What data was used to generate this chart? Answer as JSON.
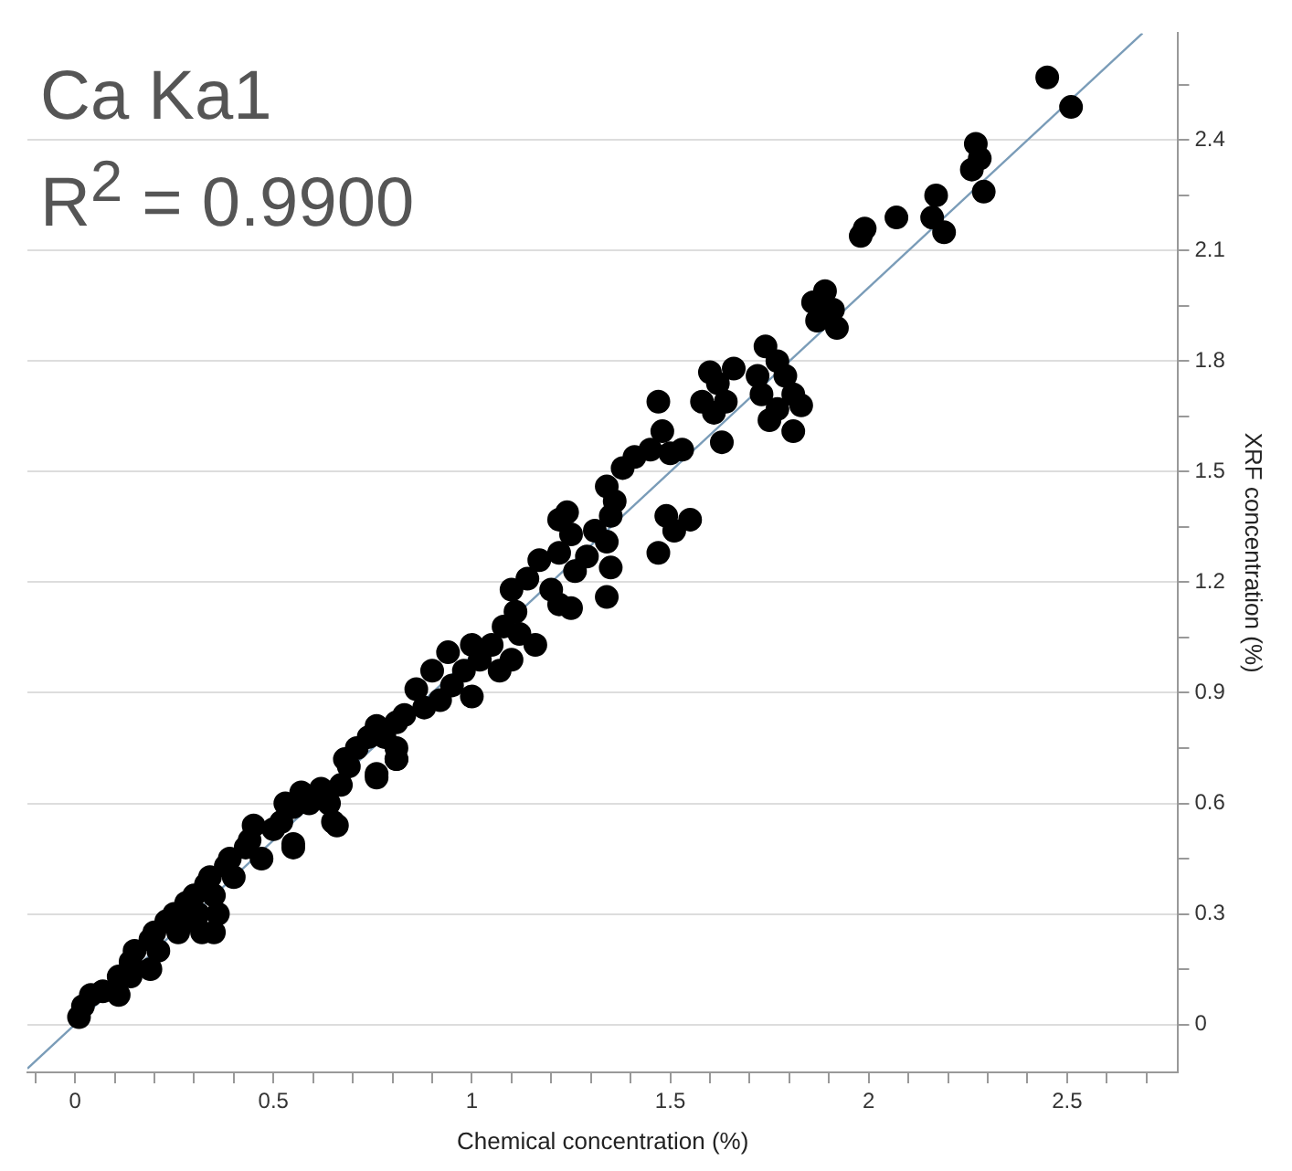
{
  "chart_data": {
    "type": "scatter",
    "title": "Ca Ka1",
    "subtitle": "R$^{2}$ = 0.9900",
    "xlabel": "Chemical concentration (%)",
    "ylabel": "XRF concentration (%)",
    "xlim": [
      -0.12,
      2.78
    ],
    "ylim": [
      -0.13,
      2.69
    ],
    "xticks": [
      {
        "value": -0.1,
        "label": null
      },
      0,
      {
        "value": 0.1,
        "label": null
      },
      {
        "value": 0.2,
        "label": null
      },
      {
        "value": 0.3,
        "label": null
      },
      {
        "value": 0.4,
        "label": null
      },
      0.5,
      {
        "value": 0.6,
        "label": null
      },
      {
        "value": 0.7,
        "label": null
      },
      {
        "value": 0.8,
        "label": null
      },
      {
        "value": 0.9,
        "label": null
      },
      1,
      {
        "value": 1.1,
        "label": null
      },
      {
        "value": 1.2,
        "label": null
      },
      {
        "value": 1.3,
        "label": null
      },
      {
        "value": 1.4,
        "label": null
      },
      1.5,
      {
        "value": 1.6,
        "label": null
      },
      {
        "value": 1.7,
        "label": null
      },
      {
        "value": 1.8,
        "label": null
      },
      {
        "value": 1.9,
        "label": null
      },
      2,
      {
        "value": 2.1,
        "label": null
      },
      {
        "value": 2.2,
        "label": null
      },
      {
        "value": 2.3,
        "label": null
      },
      {
        "value": 2.4,
        "label": null
      },
      2.5,
      {
        "value": 2.6,
        "label": null
      },
      {
        "value": 2.7,
        "label": null
      }
    ],
    "yticks": [
      0,
      {
        "value": 0.15,
        "label": null
      },
      0.3,
      {
        "value": 0.45,
        "label": null
      },
      0.6,
      {
        "value": 0.75,
        "label": null
      },
      0.9,
      {
        "value": 1.05,
        "label": null
      },
      1.2,
      {
        "value": 1.35,
        "label": null
      },
      1.5,
      {
        "value": 1.65,
        "label": null
      },
      1.8,
      {
        "value": 1.95,
        "label": null
      },
      2.1,
      {
        "value": 2.25,
        "label": null
      },
      2.4,
      {
        "value": 2.55,
        "label": null
      }
    ],
    "grid": "y",
    "legend": false,
    "marker": "circle",
    "series": [
      {
        "type": "line",
        "color": "#7a9cb8",
        "x": [
          -0.12,
          2.69
        ],
        "values": [
          -0.12,
          2.69
        ],
        "marker": "none"
      },
      {
        "color": "#000000",
        "x": [
          2.45,
          2.51,
          2.27,
          2.28,
          2.26,
          2.29,
          2.17,
          2.16,
          2.19,
          2.07,
          1.98,
          1.99,
          1.89,
          1.86,
          1.91,
          1.87,
          1.92,
          1.74,
          1.77,
          1.72,
          1.79,
          1.73,
          1.81,
          1.77,
          1.83,
          1.81,
          1.75,
          1.66,
          1.6,
          1.62,
          1.58,
          1.64,
          1.61,
          1.63,
          1.55,
          1.49,
          1.51,
          1.47,
          1.38,
          1.41,
          1.45,
          1.5,
          1.53,
          1.48,
          1.47,
          1.34,
          1.36,
          1.35,
          1.31,
          1.34,
          1.35,
          1.34,
          1.24,
          1.22,
          1.25,
          1.22,
          1.29,
          1.26,
          1.25,
          1.22,
          1.2,
          1.17,
          1.14,
          1.1,
          1.11,
          1.08,
          1.12,
          1.16,
          1.05,
          1.1,
          1.07,
          1.02,
          1.0,
          0.94,
          0.98,
          0.9,
          0.95,
          0.92,
          1.0,
          0.86,
          0.88,
          0.83,
          0.81,
          0.76,
          0.74,
          0.78,
          0.71,
          0.81,
          0.81,
          0.76,
          0.69,
          0.67,
          0.62,
          0.57,
          0.59,
          0.64,
          0.65,
          0.55,
          0.52,
          0.55,
          0.5,
          0.68,
          0.76,
          0.81,
          0.53,
          0.66,
          0.55,
          0.45,
          0.35,
          0.01,
          0.02,
          0.04,
          0.07,
          0.11,
          0.14,
          0.15,
          0.19,
          0.21,
          0.2,
          0.23,
          0.26,
          0.25,
          0.28,
          0.31,
          0.3,
          0.33,
          0.35,
          0.34,
          0.38,
          0.4,
          0.39,
          0.43,
          0.44,
          0.47,
          0.14,
          0.19,
          0.11,
          0.28,
          0.36,
          0.32
        ],
        "values": [
          2.57,
          2.49,
          2.39,
          2.35,
          2.32,
          2.26,
          2.25,
          2.19,
          2.15,
          2.19,
          2.14,
          2.16,
          1.99,
          1.96,
          1.94,
          1.91,
          1.89,
          1.84,
          1.8,
          1.76,
          1.76,
          1.71,
          1.71,
          1.67,
          1.68,
          1.61,
          1.64,
          1.78,
          1.77,
          1.74,
          1.69,
          1.69,
          1.66,
          1.58,
          1.37,
          1.38,
          1.34,
          1.28,
          1.51,
          1.54,
          1.56,
          1.55,
          1.56,
          1.61,
          1.69,
          1.46,
          1.42,
          1.38,
          1.34,
          1.31,
          1.24,
          1.16,
          1.39,
          1.37,
          1.33,
          1.28,
          1.27,
          1.23,
          1.13,
          1.14,
          1.18,
          1.26,
          1.21,
          1.18,
          1.12,
          1.08,
          1.06,
          1.03,
          1.03,
          0.99,
          0.96,
          0.99,
          1.03,
          1.01,
          0.96,
          0.96,
          0.92,
          0.88,
          0.89,
          0.91,
          0.86,
          0.84,
          0.82,
          0.81,
          0.78,
          0.78,
          0.75,
          0.75,
          0.72,
          0.68,
          0.7,
          0.65,
          0.64,
          0.63,
          0.6,
          0.6,
          0.55,
          0.59,
          0.55,
          0.49,
          0.53,
          0.72,
          0.67,
          0.72,
          0.6,
          0.54,
          0.48,
          0.54,
          0.25,
          0.02,
          0.05,
          0.08,
          0.09,
          0.13,
          0.17,
          0.2,
          0.23,
          0.2,
          0.25,
          0.28,
          0.25,
          0.3,
          0.33,
          0.3,
          0.35,
          0.38,
          0.35,
          0.4,
          0.43,
          0.4,
          0.45,
          0.48,
          0.5,
          0.45,
          0.13,
          0.15,
          0.08,
          0.28,
          0.3,
          0.25
        ]
      }
    ]
  }
}
